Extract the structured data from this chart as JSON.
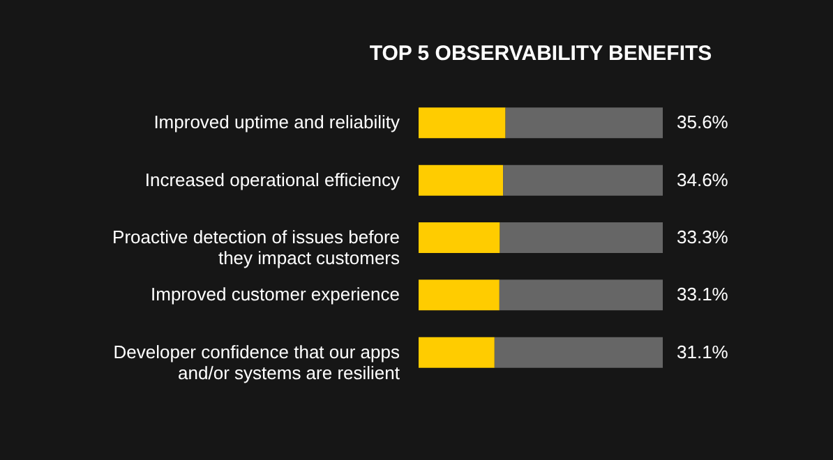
{
  "chart_data": {
    "type": "bar",
    "orientation": "horizontal",
    "stacked": true,
    "title": "TOP 5 OBSERVABILITY BENEFITS",
    "categories": [
      "Improved uptime and reliability",
      "Increased operational efficiency",
      "Proactive detection of issues before they impact customers",
      "Improved customer experience",
      "Developer confidence that our apps and/or systems are resilient"
    ],
    "series": [
      {
        "color": "#ffcc00",
        "values": [
          35.6,
          34.6,
          33.3,
          33.1,
          31.1
        ],
        "value_labels": [
          "35.6%",
          "34.6%",
          "33.3%",
          "33.1%",
          "31.1%"
        ]
      },
      {
        "color": "#666666",
        "values": [
          64.4,
          65.4,
          66.7,
          66.9,
          68.9
        ]
      }
    ],
    "xlim": [
      0,
      100
    ],
    "tick_labels": "y",
    "grid": false,
    "legend": false
  }
}
